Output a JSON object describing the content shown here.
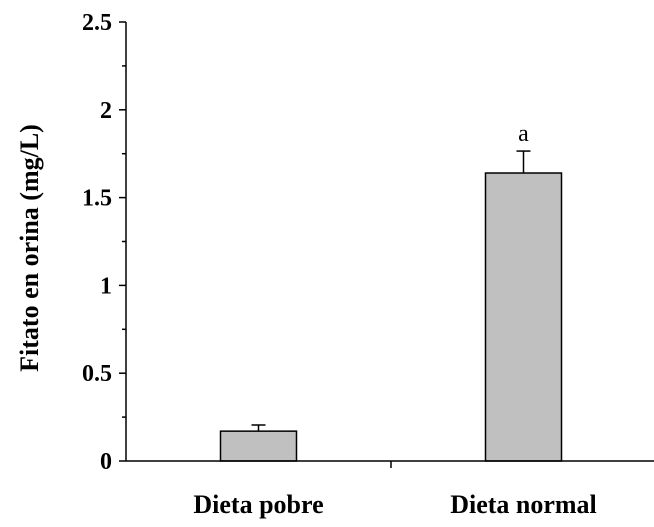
{
  "chart_data": {
    "type": "bar",
    "categories": [
      "Dieta pobre",
      "Dieta normal"
    ],
    "values": [
      0.17,
      1.64
    ],
    "error": [
      0.035,
      0.125
    ],
    "annotations": [
      "",
      "a"
    ],
    "ylabel": "Fitato en orina (mg/L)",
    "xlabel": "",
    "ylim": [
      0,
      2.5
    ],
    "yticks": [
      "0",
      "0.5",
      "1",
      "1.5",
      "2",
      "2.5"
    ],
    "grid": false,
    "bar_color": "#c0c0c0"
  }
}
